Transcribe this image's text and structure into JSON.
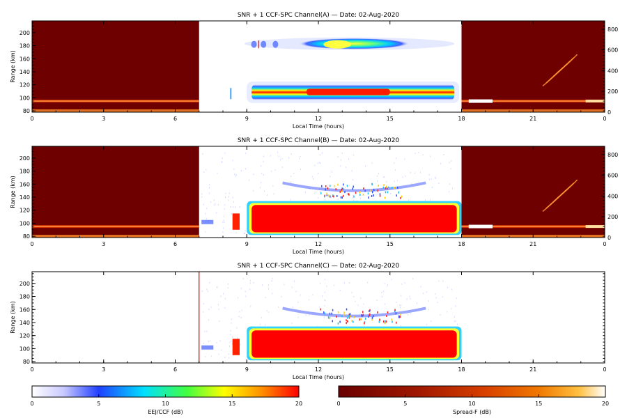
{
  "chart_data": [
    {
      "type": "heatmap",
      "title": "SNR + 1 CCF-SPC Channel(A) — Date: 02-Aug-2020",
      "xlabel": "Local Time (hours)",
      "ylabel": "Range (km)",
      "xlim": [
        0,
        24
      ],
      "ylim": [
        78,
        218
      ],
      "xticks": [
        "0",
        "3",
        "6",
        "9",
        "12",
        "15",
        "18",
        "21",
        "0"
      ],
      "yticks": [
        "80",
        "100",
        "120",
        "140",
        "160",
        "180",
        "200"
      ],
      "right_axis": true,
      "right_yticks": [
        "0",
        "200",
        "400",
        "600",
        "800"
      ],
      "night_windows": [
        [
          0,
          7
        ],
        [
          18,
          24
        ]
      ]
    },
    {
      "type": "heatmap",
      "title": "SNR + 1 CCF-SPC Channel(B) — Date: 02-Aug-2020",
      "xlabel": "Local Time (hours)",
      "ylabel": "Range (km)",
      "xlim": [
        0,
        24
      ],
      "ylim": [
        78,
        218
      ],
      "xticks": [
        "0",
        "3",
        "6",
        "9",
        "12",
        "15",
        "18",
        "21",
        "0"
      ],
      "yticks": [
        "80",
        "100",
        "120",
        "140",
        "160",
        "180",
        "200"
      ],
      "right_axis": true,
      "right_yticks": [
        "0",
        "200",
        "400",
        "600",
        "800"
      ],
      "night_windows": [
        [
          0,
          7
        ],
        [
          18,
          24
        ]
      ]
    },
    {
      "type": "heatmap",
      "title": "SNR + 1 CCF-SPC Channel(C) — Date: 02-Aug-2020",
      "xlabel": "Local Time (hours)",
      "ylabel": "Range (km)",
      "xlim": [
        0,
        24
      ],
      "ylim": [
        78,
        218
      ],
      "xticks": [
        "0",
        "3",
        "6",
        "9",
        "12",
        "15",
        "18",
        "21",
        "0"
      ],
      "yticks": [
        "80",
        "100",
        "120",
        "140",
        "160",
        "180",
        "200"
      ],
      "right_axis": false,
      "night_windows": []
    }
  ],
  "colorbars": [
    {
      "label": "EEJ/CCF (dB)",
      "ticks": [
        "0",
        "5",
        "10",
        "15",
        "20"
      ],
      "stops": [
        "#ffffff",
        "#2040ff",
        "#00e0ff",
        "#40ff40",
        "#ffff00",
        "#ff9000",
        "#ff0000"
      ]
    },
    {
      "label": "Spread-F (dB)",
      "ticks": [
        "0",
        "5",
        "10",
        "15",
        "20"
      ],
      "stops": [
        "#6a0000",
        "#a01800",
        "#d84000",
        "#f07800",
        "#ffc040",
        "#ffffff"
      ]
    }
  ]
}
